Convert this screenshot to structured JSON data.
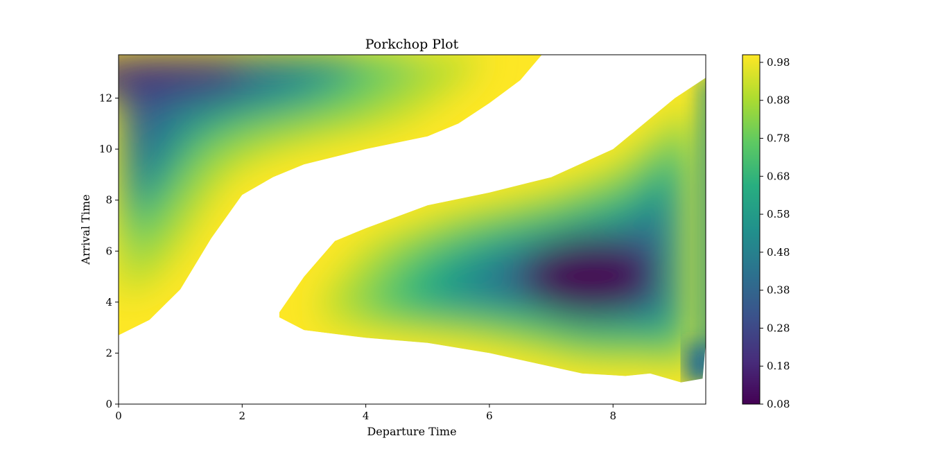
{
  "chart_data": {
    "type": "heatmap",
    "subtype": "filled-contour",
    "title": "Porkchop Plot",
    "xlabel": "Departure Time",
    "ylabel": "Arrival Time",
    "xlim": [
      0,
      9.5
    ],
    "ylim": [
      0,
      13.7
    ],
    "xticks": [
      0,
      2,
      4,
      6,
      8
    ],
    "xtick_labels": [
      "0",
      "2",
      "4",
      "6",
      "8"
    ],
    "yticks": [
      0,
      2,
      4,
      6,
      8,
      10,
      12
    ],
    "ytick_labels": [
      "0",
      "2",
      "4",
      "6",
      "8",
      "10",
      "12"
    ],
    "colormap": "viridis",
    "colormap_stops": [
      "#440154",
      "#472d7b",
      "#3b528b",
      "#2c728e",
      "#21918c",
      "#28ae80",
      "#5ec962",
      "#addc30",
      "#fde725"
    ],
    "colorbar": {
      "min": 0.08,
      "max": 1.0,
      "ticks": [
        0.08,
        0.18,
        0.28,
        0.38,
        0.48,
        0.58,
        0.68,
        0.78,
        0.88,
        0.98
      ],
      "tick_labels": [
        "0.08",
        "0.18",
        "0.28",
        "0.38",
        "0.48",
        "0.58",
        "0.68",
        "0.78",
        "0.88",
        "0.98"
      ]
    },
    "regions": [
      {
        "upper_lobe_lower_edge": [
          [
            0,
            2.7
          ],
          [
            0.5,
            3.3
          ],
          [
            1.0,
            4.5
          ],
          [
            1.5,
            6.5
          ],
          [
            2.0,
            8.2
          ],
          [
            2.5,
            8.9
          ],
          [
            3.0,
            9.4
          ],
          [
            3.5,
            9.7
          ],
          [
            4.0,
            10.0
          ],
          [
            5.0,
            10.5
          ],
          [
            5.5,
            11.0
          ],
          [
            6.0,
            11.8
          ],
          [
            6.5,
            12.7
          ],
          [
            6.85,
            13.7
          ]
        ],
        "minimum": [
          0.4,
          12.8
        ]
      },
      {
        "lower_lobe_boundary": [
          [
            2.6,
            3.6
          ],
          [
            3.0,
            5.0
          ],
          [
            3.5,
            6.4
          ],
          [
            4.0,
            6.9
          ],
          [
            5.0,
            7.8
          ],
          [
            6.0,
            8.3
          ],
          [
            7.0,
            8.9
          ],
          [
            8.0,
            10.0
          ],
          [
            9.0,
            12.0
          ],
          [
            9.5,
            12.8
          ],
          [
            9.5,
            2.4
          ],
          [
            9.45,
            1.0
          ],
          [
            9.1,
            0.85
          ],
          [
            8.6,
            1.2
          ],
          [
            8.2,
            1.1
          ],
          [
            7.5,
            1.2
          ],
          [
            6.0,
            2.0
          ],
          [
            5.0,
            2.4
          ],
          [
            4.0,
            2.6
          ],
          [
            3.0,
            2.9
          ],
          [
            2.6,
            3.4
          ]
        ],
        "minimum": [
          7.6,
          5.0
        ]
      }
    ]
  }
}
